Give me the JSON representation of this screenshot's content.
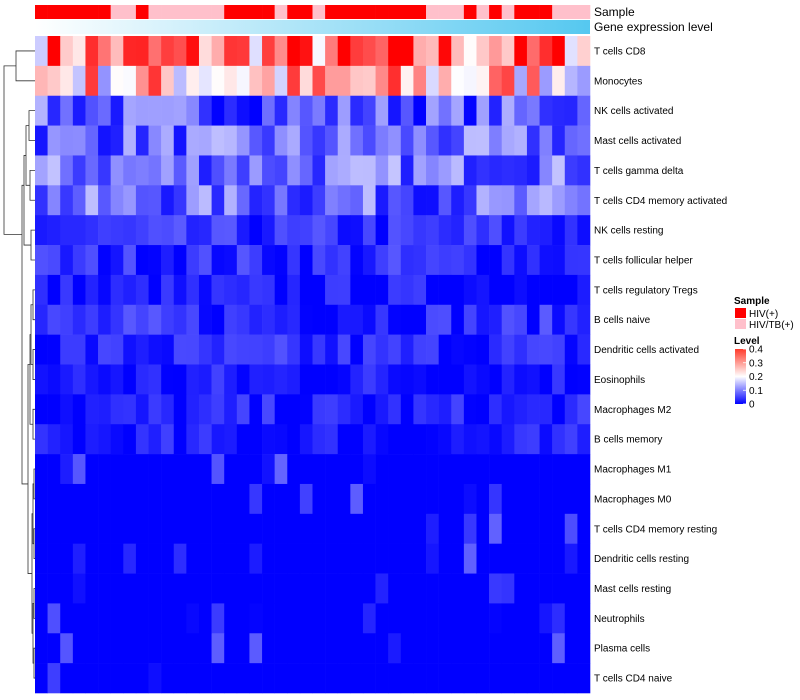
{
  "chart_data": {
    "type": "heatmap",
    "title": "",
    "annotation_labels": [
      "Sample",
      "Gene expression level"
    ],
    "rows": [
      "T cells CD8",
      "Monocytes",
      "NK cells activated",
      "Mast cells activated",
      "T cells gamma delta",
      "T cells CD4 memory activated",
      "NK cells resting",
      "T cells follicular helper",
      "T cells regulatory  Tregs",
      "B cells naive",
      "Dendritic cells activated",
      "Eosinophils",
      "Macrophages M2",
      "B cells memory",
      "Macrophages M1",
      "Macrophages M0",
      "T cells CD4 memory resting",
      "Dendritic cells resting",
      "Mast cells resting",
      "Neutrophils",
      "Plasma cells",
      "T cells CD4 naive"
    ],
    "row_means": [
      0.3,
      0.24,
      0.07,
      0.08,
      0.09,
      0.08,
      0.04,
      0.04,
      0.02,
      0.04,
      0.035,
      0.025,
      0.025,
      0.02,
      0.01,
      0.01,
      0.008,
      0.005,
      0.004,
      0.003,
      0.01,
      0.004
    ],
    "n_columns": 44,
    "sample_annotation": [
      "HIV(+)",
      "HIV(+)",
      "HIV(+)",
      "HIV(+)",
      "HIV(+)",
      "HIV(+)",
      "HIV/TB(+)",
      "HIV/TB(+)",
      "HIV(+)",
      "HIV/TB(+)",
      "HIV/TB(+)",
      "HIV/TB(+)",
      "HIV/TB(+)",
      "HIV/TB(+)",
      "HIV/TB(+)",
      "HIV(+)",
      "HIV(+)",
      "HIV(+)",
      "HIV(+)",
      "HIV/TB(+)",
      "HIV(+)",
      "HIV(+)",
      "HIV/TB(+)",
      "HIV(+)",
      "HIV(+)",
      "HIV(+)",
      "HIV(+)",
      "HIV(+)",
      "HIV(+)",
      "HIV(+)",
      "HIV(+)",
      "HIV/TB(+)",
      "HIV/TB(+)",
      "HIV/TB(+)",
      "HIV(+)",
      "HIV/TB(+)",
      "HIV(+)",
      "HIV/TB(+)",
      "HIV(+)",
      "HIV(+)",
      "HIV(+)",
      "HIV/TB(+)",
      "HIV/TB(+)",
      "HIV/TB(+)"
    ],
    "expression_scale": {
      "from": "#ffffff",
      "to": "#55c8f0"
    },
    "color_scale": {
      "title": "Level",
      "range": [
        0,
        0.4
      ],
      "ticks": [
        0.4,
        0.3,
        0.2,
        0.1,
        0
      ],
      "colors": [
        "#0000ff",
        "#ffffff",
        "#ff0000"
      ],
      "mid": 0.2
    },
    "sample_legend": {
      "title": "Sample",
      "entries": [
        {
          "label": "HIV(+)",
          "color": "#ff0000"
        },
        {
          "label": "HIV/TB(+)",
          "color": "#ffc0cb"
        }
      ]
    },
    "dendrogram": "hierarchical clustering of rows"
  }
}
